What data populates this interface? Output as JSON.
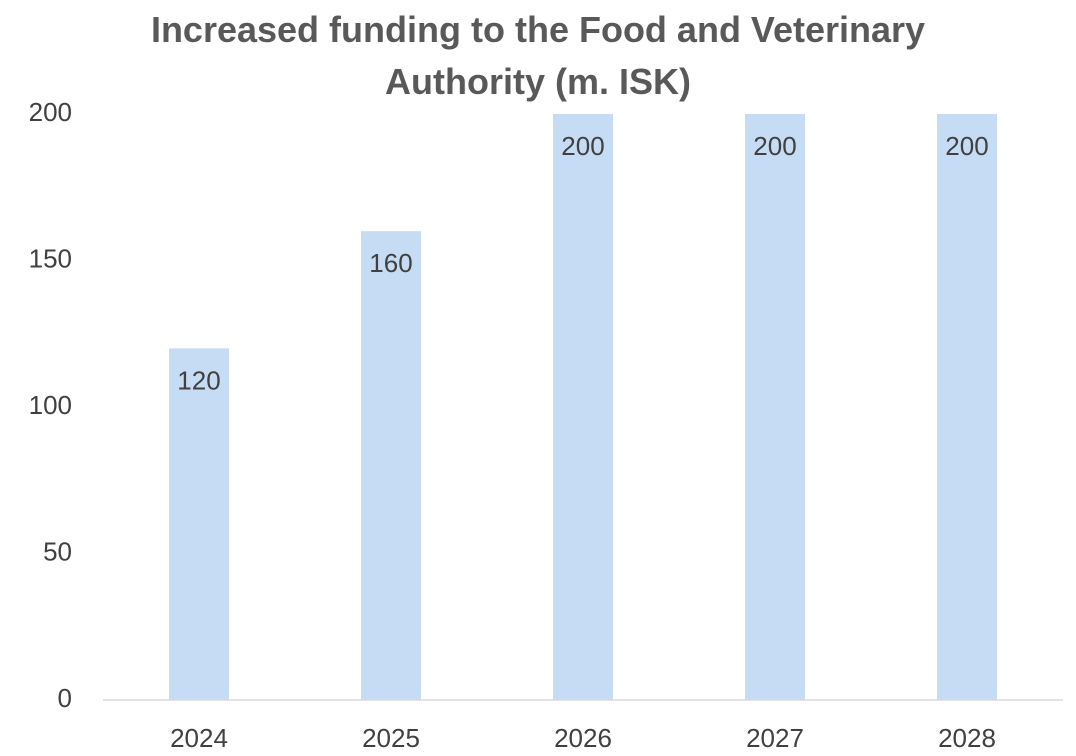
{
  "chart_data": {
    "type": "bar",
    "title": "Increased funding to the Food and Veterinary Authority (m. ISK)",
    "categories": [
      "2024",
      "2025",
      "2026",
      "2027",
      "2028"
    ],
    "values": [
      120,
      160,
      200,
      200,
      200
    ],
    "color": "#c5dcf4",
    "ylim": [
      0,
      200
    ],
    "yticks": [
      0,
      50,
      100,
      150,
      200
    ],
    "grid": false
  }
}
